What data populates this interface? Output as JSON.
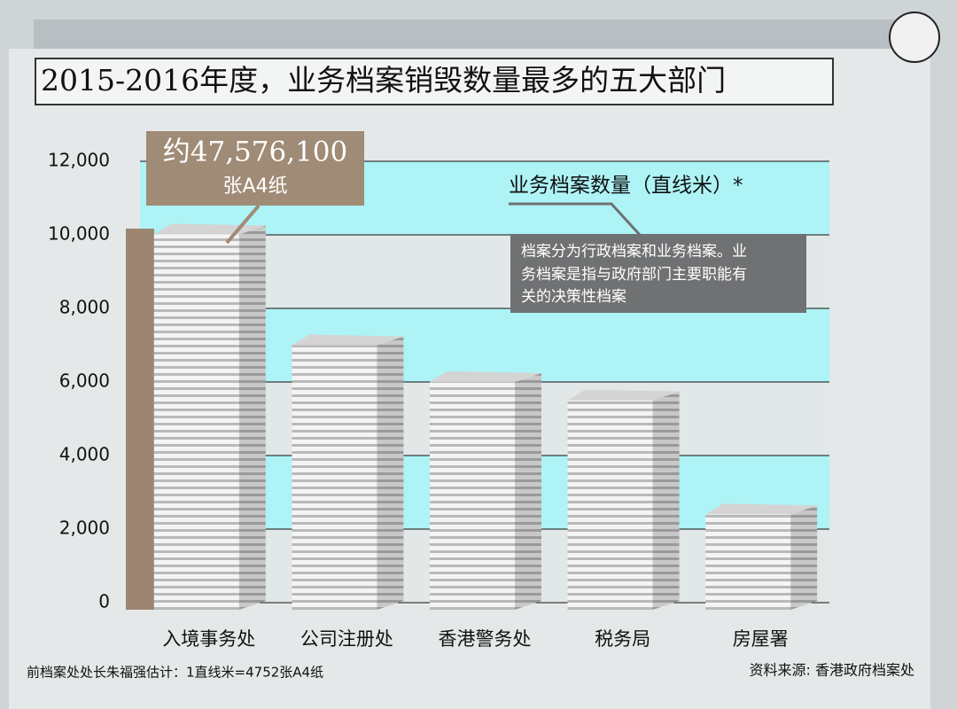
{
  "chart_data": {
    "type": "bar",
    "title": "2015-2016年度，业务档案销毁数量最多的五大部门",
    "legend_label": "业务档案数量（直线米）*",
    "note": [
      "档案分为行政档案和业务档案。业",
      "务档案是指与政府部门主要职能有",
      "关的决策性档案"
    ],
    "callout": [
      "约47,576,100",
      "张A4纸"
    ],
    "footnote": "前档案处处长朱福强估计：1直线米=4752张A4纸",
    "source": "资料来源: 香港政府档案处",
    "categories": [
      "入境事务处",
      "公司注册处",
      "香港警务处",
      "税务局",
      "房屋署"
    ],
    "values": [
      10012,
      7000,
      6000,
      5500,
      2400
    ],
    "color": "#d4d4d4",
    "band_colors": [
      "#aef3f6",
      "#e2e7e8"
    ],
    "ylim": [
      0,
      12000
    ],
    "yticks": [
      0,
      {
        "value": 2000,
        "label": "2,000"
      },
      {
        "value": 4000,
        "label": "4,000"
      },
      {
        "value": 6000,
        "label": "6,000"
      },
      {
        "value": 8000,
        "label": "8,000"
      },
      {
        "value": 10000,
        "label": "10,000"
      },
      {
        "value": 12000,
        "label": "12,000"
      }
    ],
    "grid": true
  }
}
